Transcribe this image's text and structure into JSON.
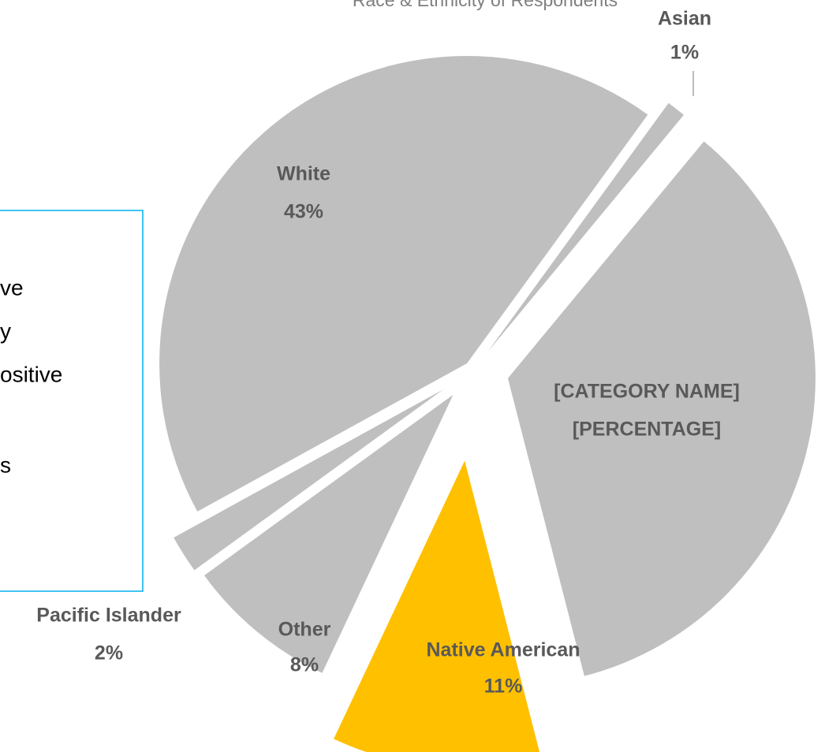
{
  "chart_data": {
    "type": "pie",
    "title": "Race & Ethnicity of Respondents",
    "categories": [
      "Asian",
      "[CATEGORY NAME]",
      "Native American",
      "Other",
      "Pacific Islander",
      "White"
    ],
    "values": [
      1,
      35,
      11,
      8,
      2,
      43
    ],
    "value_labels": [
      "1%",
      "[PERCENTAGE]",
      "11%",
      "8%",
      "2%",
      "43%"
    ],
    "colors": [
      "#bfbfbf",
      "#bfbfbf",
      "#ffc000",
      "#bfbfbf",
      "#bfbfbf",
      "#bfbfbf"
    ]
  },
  "text_box": {
    "lines": [
      "ve",
      "y",
      "ositive",
      "s"
    ]
  }
}
